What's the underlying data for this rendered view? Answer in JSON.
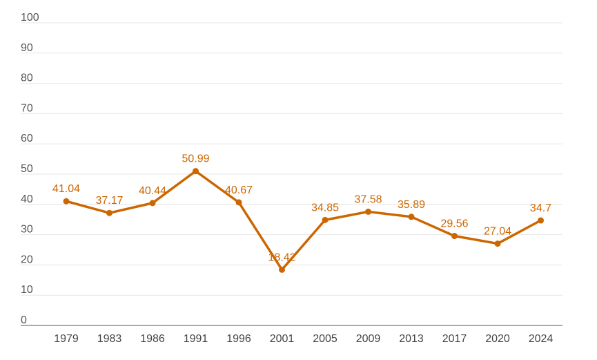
{
  "chart_data": {
    "type": "line",
    "title": "",
    "xlabel": "",
    "ylabel": "",
    "ylim": [
      0,
      100
    ],
    "yticks": [
      0,
      10,
      20,
      30,
      40,
      50,
      60,
      70,
      80,
      90,
      100
    ],
    "grid": true,
    "legend": "none",
    "color": "#cc6600",
    "categories": [
      "1979",
      "1983",
      "1986",
      "1991",
      "1996",
      "2001",
      "2005",
      "2009",
      "2013",
      "2017",
      "2020",
      "2024"
    ],
    "values": [
      41.04,
      37.17,
      40.44,
      50.99,
      40.67,
      18.42,
      34.85,
      37.58,
      35.89,
      29.56,
      27.04,
      34.7
    ],
    "labels": [
      "41.04",
      "37.17",
      "40.44",
      "50.99",
      "40.67",
      "18.42",
      "34.85",
      "37.58",
      "35.89",
      "29.56",
      "27.04",
      "34.7"
    ]
  }
}
